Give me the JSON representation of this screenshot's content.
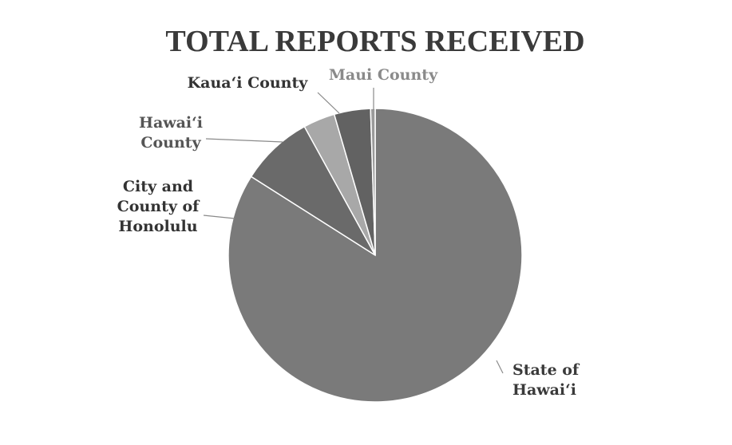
{
  "chart_data": {
    "type": "pie",
    "title": "TOTAL REPORTS RECEIVED",
    "slices": [
      {
        "label": "State of Hawai‘i",
        "label_lines": [
          "State of",
          "Hawai‘i"
        ],
        "value": 84,
        "color": "#7a7a7a",
        "text_color": "#3a3a3a"
      },
      {
        "label": "City and County of Honolulu",
        "label_lines": [
          "City and",
          "County of",
          "Honolulu"
        ],
        "value": 8,
        "color": "#6a6a6a",
        "text_color": "#333333"
      },
      {
        "label": "Hawai‘i County",
        "label_lines": [
          "Hawai‘i",
          "County"
        ],
        "value": 3.5,
        "color": "#a8a8a8",
        "text_color": "#555555"
      },
      {
        "label": "Kaua‘i County",
        "label_lines": [
          "Kaua‘i County"
        ],
        "value": 4,
        "color": "#626262",
        "text_color": "#333333"
      },
      {
        "label": "Maui County",
        "label_lines": [
          "Maui County"
        ],
        "value": 0.5,
        "color": "#9a9a9a",
        "text_color": "#8a8a8a"
      }
    ],
    "start_direction": "top",
    "direction": "clockwise",
    "legend": "none"
  }
}
